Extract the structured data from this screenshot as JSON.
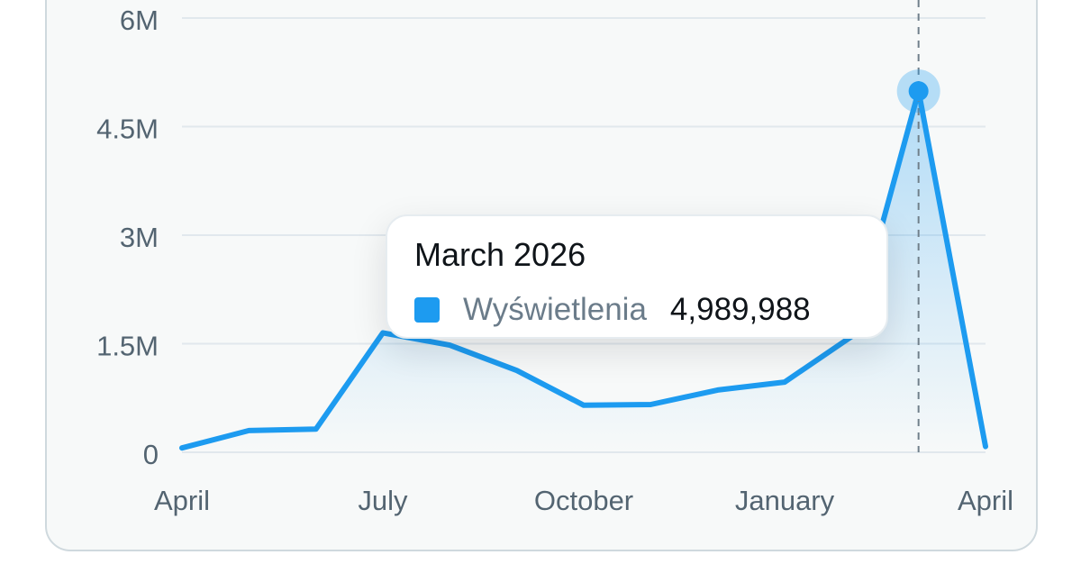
{
  "colors": {
    "accent": "#1d9bf0",
    "grid": "#e1e8ed",
    "tick_text": "#536471",
    "card_bg": "#f7f9f9",
    "card_border": "#cfd9de"
  },
  "chart_data": {
    "type": "area",
    "x_ticks": [
      "April",
      "July",
      "October",
      "January",
      "April"
    ],
    "y_ticks": [
      "0",
      "1.5M",
      "3M",
      "4.5M",
      "6M"
    ],
    "ylim": [
      0,
      6000000
    ],
    "grid": true,
    "series": [
      {
        "name": "Wyświetlenia",
        "x": [
          "2025-04",
          "2025-05",
          "2025-06",
          "2025-07",
          "2025-08",
          "2025-09",
          "2025-10",
          "2025-11",
          "2025-12",
          "2026-01",
          "2026-02",
          "2026-03",
          "2026-04"
        ],
        "values": [
          60000,
          300000,
          320000,
          1650000,
          1480000,
          1130000,
          650000,
          660000,
          860000,
          970000,
          1600000,
          4989988,
          80000
        ]
      }
    ],
    "highlight_index": 11
  },
  "tooltip": {
    "title": "March 2026",
    "series_label": "Wyświetlenia",
    "value": "4,989,988"
  }
}
